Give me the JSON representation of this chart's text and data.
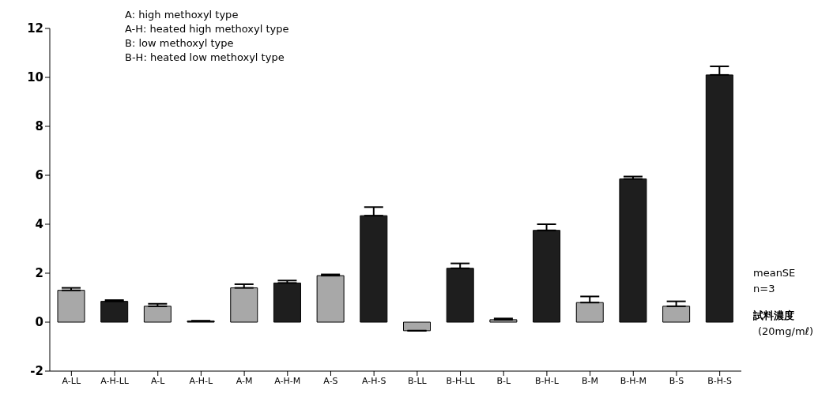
{
  "chart_data": {
    "type": "bar",
    "categories": [
      "A-LL",
      "A-H-LL",
      "A-L",
      "A-H-L",
      "A-M",
      "A-H-M",
      "A-S",
      "A-H-S",
      "B-LL",
      "B-H-LL",
      "B-L",
      "B-H-L",
      "B-M",
      "B-H-M",
      "B-S",
      "B-H-S"
    ],
    "values": [
      1.3,
      0.85,
      0.65,
      0.05,
      1.4,
      1.6,
      1.9,
      4.35,
      -0.35,
      2.2,
      0.1,
      3.75,
      0.8,
      5.85,
      0.65,
      10.1
    ],
    "errors": [
      0.1,
      0.05,
      0.1,
      null,
      0.15,
      0.1,
      0.05,
      0.35,
      null,
      0.2,
      0.05,
      0.25,
      0.25,
      0.1,
      0.2,
      0.35
    ],
    "colors": [
      "#a8a8a8",
      "#1e1e1e",
      "#a8a8a8",
      "#1e1e1e",
      "#a8a8a8",
      "#1e1e1e",
      "#a8a8a8",
      "#1e1e1e",
      "#a8a8a8",
      "#1e1e1e",
      "#a8a8a8",
      "#1e1e1e",
      "#a8a8a8",
      "#1e1e1e",
      "#a8a8a8",
      "#1e1e1e"
    ],
    "ylim": [
      -2,
      12
    ],
    "yticks": [
      -2,
      0,
      2,
      4,
      6,
      8,
      10,
      12
    ],
    "grid": false,
    "legend": false,
    "annotations": [
      "A: high methoxyl type",
      "A-H: heated  high methoxyl type",
      "B: low  methoxyl type",
      "B-H:  heated  low methoxyl type",
      "meanSE",
      "n=3",
      "試料濃度",
      "(20mg/mℓ)"
    ]
  }
}
